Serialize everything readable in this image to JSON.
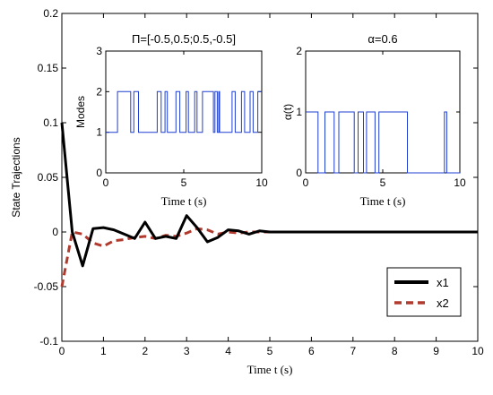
{
  "chart_data": [
    {
      "id": "main",
      "type": "line",
      "xlabel": "Time t (s)",
      "ylabel": "State Trajections",
      "xlim": [
        0,
        10
      ],
      "ylim": [
        -0.1,
        0.2
      ],
      "xticks": [
        0,
        1,
        2,
        3,
        4,
        5,
        6,
        7,
        8,
        9,
        10
      ],
      "yticks": [
        -0.1,
        -0.05,
        0,
        0.05,
        0.1,
        0.15,
        0.2
      ],
      "ytick_labels": [
        "-0.1",
        "-0.05",
        "0",
        "0.05",
        "0.1",
        "0.15",
        "0.2"
      ],
      "grid": false,
      "legend_position": "bottom-right",
      "series": [
        {
          "name": "x1",
          "color": "#000000",
          "style": "solid",
          "x": [
            0,
            0.25,
            0.5,
            0.75,
            1.0,
            1.25,
            1.5,
            1.75,
            2.0,
            2.25,
            2.5,
            2.75,
            3.0,
            3.25,
            3.5,
            3.75,
            4.0,
            4.25,
            4.5,
            4.75,
            5.0,
            5.5,
            6,
            6.5,
            7,
            7.5,
            8,
            8.5,
            9,
            9.5,
            10
          ],
          "y": [
            0.1,
            0.0,
            -0.031,
            0.003,
            0.004,
            0.002,
            -0.002,
            -0.006,
            0.009,
            -0.006,
            -0.004,
            -0.006,
            0.015,
            0.004,
            -0.009,
            -0.005,
            0.002,
            0.001,
            -0.002,
            0.001,
            0.0,
            0.0,
            0.0,
            0.0,
            0.0,
            0.0,
            0.0,
            0.0,
            0.0,
            0.0,
            0.0
          ]
        },
        {
          "name": "x2",
          "color": "#b03a2e",
          "style": "dashed",
          "x": [
            0,
            0.25,
            0.5,
            0.75,
            1.0,
            1.25,
            1.5,
            1.75,
            2.0,
            2.25,
            2.5,
            2.75,
            3.0,
            3.25,
            3.5,
            3.75,
            4.0,
            4.25,
            4.5,
            4.75,
            5.0,
            5.5,
            6,
            6.5,
            7,
            7.5,
            8,
            8.5,
            9,
            9.5,
            10
          ],
          "y": [
            -0.05,
            0.0,
            -0.002,
            -0.01,
            -0.013,
            -0.008,
            -0.007,
            -0.005,
            -0.004,
            -0.006,
            -0.003,
            -0.004,
            -0.001,
            0.003,
            0.002,
            -0.002,
            0.0,
            -0.001,
            0.0,
            0.0,
            0.0,
            0.0,
            0.0,
            0.0,
            0.0,
            0.0,
            0.0,
            0.0,
            0.0,
            0.0,
            0.0
          ]
        }
      ]
    },
    {
      "id": "modes",
      "type": "line",
      "title": "Π=[-0.5,0.5;0.5,-0.5]",
      "xlabel": "Time t (s)",
      "ylabel": "Modes",
      "xlim": [
        0,
        10
      ],
      "ylim": [
        0,
        3
      ],
      "xticks": [
        0,
        5,
        10
      ],
      "yticks": [
        0,
        1,
        2,
        3
      ],
      "step_series": {
        "color": "#1f3fd0",
        "switch_times": [
          0,
          0.75,
          1.6,
          1.8,
          2.1,
          3.3,
          3.55,
          3.8,
          3.95,
          4.5,
          4.75,
          5.15,
          5.3,
          5.7,
          5.85,
          6.2,
          6.9,
          7.0,
          7.15,
          7.25,
          7.3,
          8.1,
          8.3,
          8.7,
          8.9,
          9.25,
          9.45,
          9.75,
          10
        ],
        "levels": [
          1,
          2,
          1,
          2,
          1,
          2,
          1,
          2,
          1,
          2,
          1,
          2,
          1,
          2,
          1,
          2,
          1,
          2,
          1,
          2,
          1,
          2,
          1,
          2,
          1,
          2,
          1,
          2
        ]
      }
    },
    {
      "id": "alpha",
      "type": "line",
      "title": "α=0.6",
      "xlabel": "Time t (s)",
      "ylabel": "α(t)",
      "xlim": [
        0,
        10
      ],
      "ylim": [
        0,
        2
      ],
      "xticks": [
        0,
        5,
        10
      ],
      "yticks": [
        0,
        1,
        2
      ],
      "step_series": {
        "color": "#1f3fd0",
        "switch_times": [
          0,
          0.8,
          1.25,
          1.85,
          2.15,
          3.15,
          3.4,
          3.75,
          3.95,
          4.5,
          4.75,
          6.6,
          9.0,
          9.15,
          10
        ],
        "levels": [
          1,
          0,
          1,
          0,
          1,
          0,
          1,
          0,
          1,
          0,
          1,
          0,
          1,
          0
        ]
      }
    }
  ]
}
